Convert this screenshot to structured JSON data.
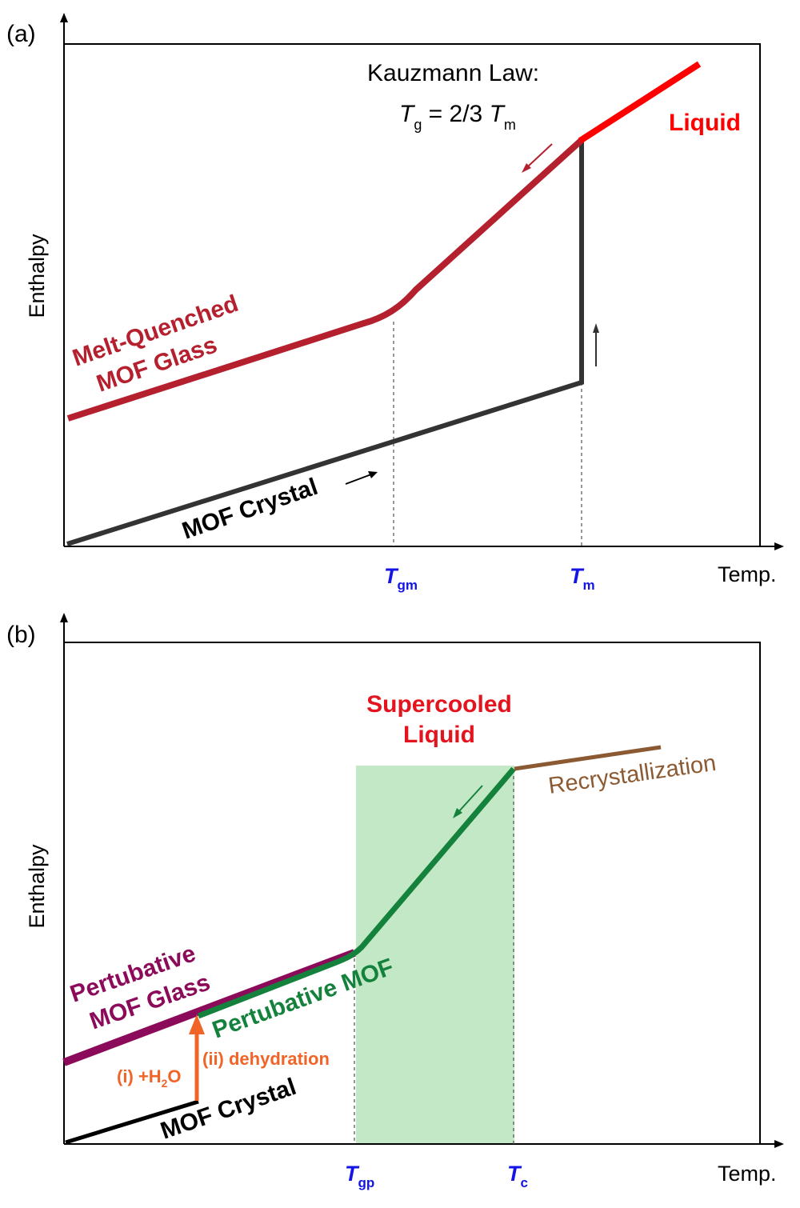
{
  "panel_a": {
    "label": "(a)",
    "y_axis_label": "Enthalpy",
    "x_axis_label": "Temp.",
    "law_title": "Kauzmann Law:",
    "law_eq_T": "T",
    "law_eq_g": "g",
    "law_eq_mid": " = 2/3 ",
    "law_eq_T2": "T",
    "law_eq_m": "m",
    "liquid_label": "Liquid",
    "glass_label_line1": "Melt-Quenched",
    "glass_label_line2": "MOF Glass",
    "crystal_label": "MOF Crystal",
    "tick1_T": "T",
    "tick1_sub": "gm",
    "tick2_T": "T",
    "tick2_sub": "m"
  },
  "panel_b": {
    "label": "(b)",
    "y_axis_label": "Enthalpy",
    "x_axis_label": "Temp.",
    "supercooled_line1": "Supercooled",
    "supercooled_line2": "Liquid",
    "recryst_label": "Recrystallization",
    "pert_glass_line1": "Pertubative",
    "pert_glass_line2": "MOF Glass",
    "pert_mof_label": "Pertubative MOF",
    "dehydration_label": "(ii) dehydration",
    "water_pre": "(i) +H",
    "water_sub": "2",
    "water_post": "O",
    "crystal_label": "MOF Crystal",
    "tick1_T": "T",
    "tick1_sub": "gp",
    "tick2_T": "T",
    "tick2_sub": "c"
  },
  "colors": {
    "liquid": "#ff0000",
    "glass_a": "#b5202e",
    "crystal": "#333333",
    "tick_blue": "#1414e6",
    "supercooled_text": "#e3141e",
    "recryst": "#8c5a32",
    "pert_glass": "#8c0a5a",
    "pert_mof": "#14823c",
    "dehydration": "#f06428",
    "shade": "#c3e8c6"
  }
}
